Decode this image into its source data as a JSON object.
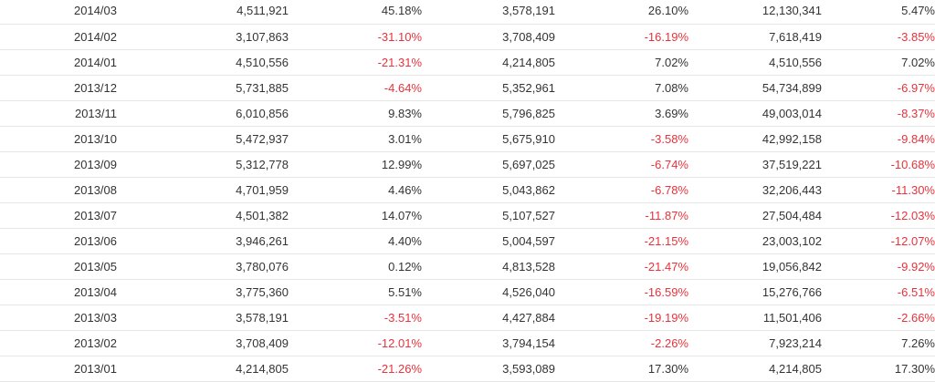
{
  "table": {
    "rows": [
      {
        "month": "2014/03",
        "v1": "4,511,921",
        "p1": "45.18%",
        "v2": "3,578,191",
        "p2": "26.10%",
        "v3": "12,130,341",
        "p3": "5.47%"
      },
      {
        "month": "2014/02",
        "v1": "3,107,863",
        "p1": "-31.10%",
        "v2": "3,708,409",
        "p2": "-16.19%",
        "v3": "7,618,419",
        "p3": "-3.85%"
      },
      {
        "month": "2014/01",
        "v1": "4,510,556",
        "p1": "-21.31%",
        "v2": "4,214,805",
        "p2": "7.02%",
        "v3": "4,510,556",
        "p3": "7.02%"
      },
      {
        "month": "2013/12",
        "v1": "5,731,885",
        "p1": "-4.64%",
        "v2": "5,352,961",
        "p2": "7.08%",
        "v3": "54,734,899",
        "p3": "-6.97%"
      },
      {
        "month": "2013/11",
        "v1": "6,010,856",
        "p1": "9.83%",
        "v2": "5,796,825",
        "p2": "3.69%",
        "v3": "49,003,014",
        "p3": "-8.37%"
      },
      {
        "month": "2013/10",
        "v1": "5,472,937",
        "p1": "3.01%",
        "v2": "5,675,910",
        "p2": "-3.58%",
        "v3": "42,992,158",
        "p3": "-9.84%"
      },
      {
        "month": "2013/09",
        "v1": "5,312,778",
        "p1": "12.99%",
        "v2": "5,697,025",
        "p2": "-6.74%",
        "v3": "37,519,221",
        "p3": "-10.68%"
      },
      {
        "month": "2013/08",
        "v1": "4,701,959",
        "p1": "4.46%",
        "v2": "5,043,862",
        "p2": "-6.78%",
        "v3": "32,206,443",
        "p3": "-11.30%"
      },
      {
        "month": "2013/07",
        "v1": "4,501,382",
        "p1": "14.07%",
        "v2": "5,107,527",
        "p2": "-11.87%",
        "v3": "27,504,484",
        "p3": "-12.03%"
      },
      {
        "month": "2013/06",
        "v1": "3,946,261",
        "p1": "4.40%",
        "v2": "5,004,597",
        "p2": "-21.15%",
        "v3": "23,003,102",
        "p3": "-12.07%"
      },
      {
        "month": "2013/05",
        "v1": "3,780,076",
        "p1": "0.12%",
        "v2": "4,813,528",
        "p2": "-21.47%",
        "v3": "19,056,842",
        "p3": "-9.92%"
      },
      {
        "month": "2013/04",
        "v1": "3,775,360",
        "p1": "5.51%",
        "v2": "4,526,040",
        "p2": "-16.59%",
        "v3": "15,276,766",
        "p3": "-6.51%"
      },
      {
        "month": "2013/03",
        "v1": "3,578,191",
        "p1": "-3.51%",
        "v2": "4,427,884",
        "p2": "-19.19%",
        "v3": "11,501,406",
        "p3": "-2.66%"
      },
      {
        "month": "2013/02",
        "v1": "3,708,409",
        "p1": "-12.01%",
        "v2": "3,794,154",
        "p2": "-2.26%",
        "v3": "7,923,214",
        "p3": "7.26%"
      },
      {
        "month": "2013/01",
        "v1": "4,214,805",
        "p1": "-21.26%",
        "v2": "3,593,089",
        "p2": "17.30%",
        "v3": "4,214,805",
        "p3": "17.30%"
      }
    ]
  },
  "colors": {
    "text": "#333333",
    "negative": "#e8323c",
    "row_border": "#e6e6e6"
  }
}
